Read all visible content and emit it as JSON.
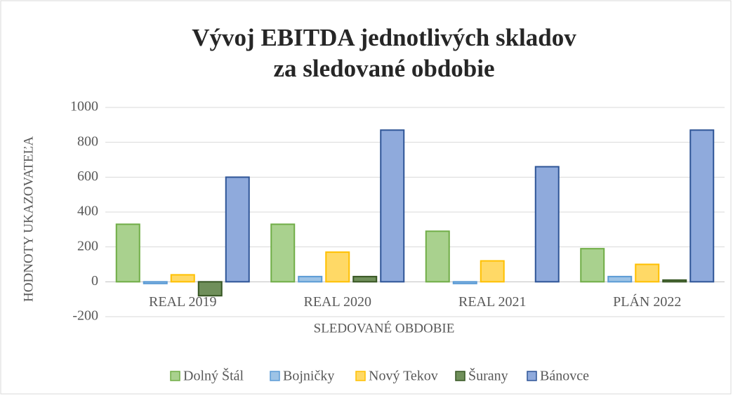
{
  "chart_data": {
    "type": "bar",
    "title": [
      "Vývoj EBITDA jednotlivých skladov",
      "za sledované obdobie"
    ],
    "x_label": "SLEDOVANÉ OBDOBIE",
    "y_label": "HODNOTY UKAZOVATEĽA",
    "categories": [
      "REAL 2019",
      "REAL 2020",
      "REAL 2021",
      "PLÁN 2022"
    ],
    "series": [
      {
        "name": "Dolný Štál",
        "color": "#a9d18e",
        "edge": "#70ad47",
        "values": [
          330,
          330,
          290,
          190
        ]
      },
      {
        "name": "Bojničky",
        "color": "#9dc3e6",
        "edge": "#5b9bd5",
        "values": [
          -10,
          30,
          -10,
          30
        ]
      },
      {
        "name": "Nový Tekov",
        "color": "#ffd966",
        "edge": "#ffc000",
        "values": [
          40,
          170,
          120,
          100
        ]
      },
      {
        "name": "Šurany",
        "color": "#6f8f5a",
        "edge": "#375623",
        "values": [
          -80,
          30,
          0,
          10
        ]
      },
      {
        "name": "Bánovce",
        "color": "#8faadc",
        "edge": "#2f5597",
        "values": [
          600,
          870,
          660,
          870
        ]
      }
    ],
    "ylim": [
      -200,
      1000
    ],
    "yticks": [
      -200,
      0,
      200,
      400,
      600,
      800,
      1000
    ],
    "grid": true,
    "legend": "bottom"
  }
}
